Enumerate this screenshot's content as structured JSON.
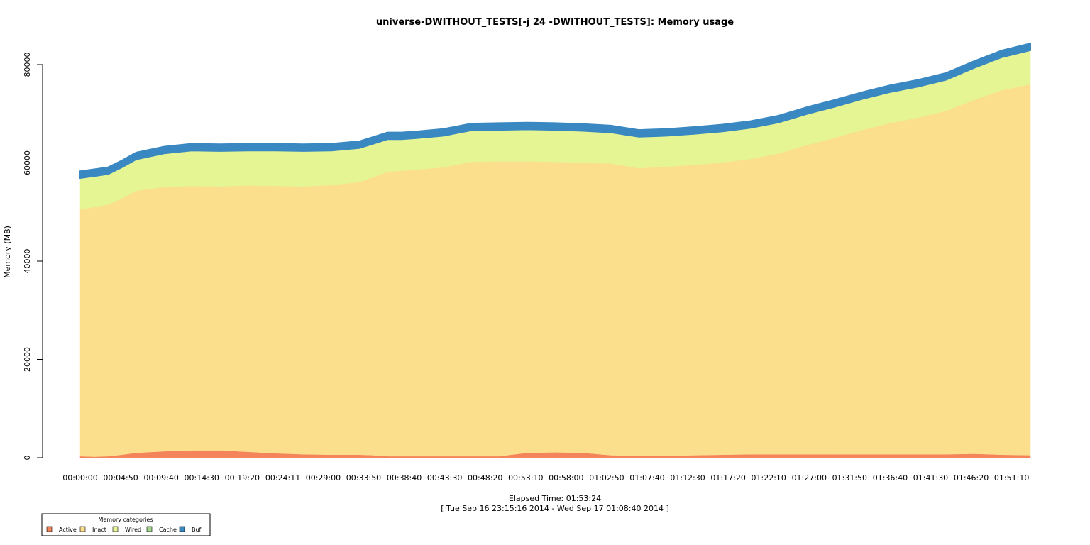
{
  "chart_data": {
    "type": "area",
    "title": "universe-DWITHOUT_TESTS[-j 24  -DWITHOUT_TESTS]: Memory usage",
    "ylabel": "Memory (MB)",
    "xlabel": "Elapsed Time: 01:53:24",
    "subtitle": "[ Tue Sep 16 23:15:16 2014 - Wed Sep 17 01:08:40 2014 ]",
    "ylim": [
      0,
      80000
    ],
    "yticks": [
      0,
      20000,
      40000,
      60000,
      80000
    ],
    "xlim": [
      0,
      6804
    ],
    "xtick_labels": [
      "00:00:00",
      "00:04:50",
      "00:09:40",
      "00:14:30",
      "00:19:20",
      "00:24:11",
      "00:29:00",
      "00:33:50",
      "00:38:40",
      "00:43:30",
      "00:48:20",
      "00:53:10",
      "00:58:00",
      "01:02:50",
      "01:07:40",
      "01:12:30",
      "01:17:20",
      "01:22:10",
      "01:27:00",
      "01:31:50",
      "01:36:40",
      "01:41:30",
      "01:46:20",
      "01:51:10"
    ],
    "xtick_values": [
      0,
      290,
      580,
      870,
      1160,
      1451,
      1740,
      2030,
      2320,
      2610,
      2900,
      3190,
      3480,
      3770,
      4060,
      4350,
      4640,
      4930,
      5220,
      5510,
      5800,
      6090,
      6380,
      6670
    ],
    "legend_title": "Memory categories",
    "legend_position": "bottom-left",
    "x": [
      0,
      100,
      200,
      300,
      400,
      600,
      800,
      1000,
      1200,
      1400,
      1600,
      1800,
      2000,
      2100,
      2200,
      2300,
      2400,
      2600,
      2800,
      3000,
      3200,
      3400,
      3600,
      3800,
      4000,
      4100,
      4200,
      4400,
      4600,
      4800,
      5000,
      5200,
      5400,
      5600,
      5800,
      6000,
      6200,
      6400,
      6600,
      6804
    ],
    "series": [
      {
        "name": "Active",
        "color": "#f4845a",
        "values": [
          300,
          200,
          300,
          600,
          1000,
          1300,
          1500,
          1500,
          1200,
          900,
          700,
          600,
          600,
          500,
          300,
          300,
          300,
          300,
          300,
          300,
          1000,
          1100,
          1000,
          500,
          400,
          400,
          400,
          500,
          600,
          700,
          700,
          700,
          700,
          700,
          700,
          700,
          700,
          800,
          600,
          500
        ]
      },
      {
        "name": "Inact",
        "color": "#fcdf8c",
        "values": [
          50200,
          50800,
          51200,
          52200,
          53300,
          53800,
          53800,
          53700,
          54200,
          54400,
          54500,
          54900,
          55500,
          56600,
          57900,
          58100,
          58300,
          58800,
          59900,
          60000,
          59300,
          59100,
          59000,
          59400,
          58500,
          58700,
          58800,
          59100,
          59500,
          60100,
          61200,
          62900,
          64400,
          66000,
          67400,
          68500,
          69900,
          72000,
          74200,
          75500
        ]
      },
      {
        "name": "Wired",
        "color": "#e5f594",
        "values": [
          6400,
          6300,
          6200,
          6300,
          6400,
          6800,
          7200,
          7200,
          7100,
          7200,
          7200,
          7000,
          6900,
          6800,
          6600,
          6400,
          6400,
          6400,
          6400,
          6400,
          6500,
          6500,
          6500,
          6300,
          6400,
          6300,
          6300,
          6300,
          6300,
          6300,
          6300,
          6300,
          6300,
          6300,
          6300,
          6300,
          6300,
          6500,
          6700,
          6900
        ]
      },
      {
        "name": "Cache",
        "color": "#a5d88f",
        "values": [
          0,
          0,
          0,
          0,
          0,
          0,
          0,
          0,
          0,
          0,
          0,
          0,
          0,
          0,
          0,
          0,
          0,
          0,
          0,
          0,
          0,
          0,
          0,
          0,
          0,
          0,
          0,
          0,
          0,
          0,
          0,
          0,
          0,
          0,
          0,
          0,
          0,
          0,
          0,
          0
        ]
      },
      {
        "name": "Buf",
        "color": "#3a88c1",
        "values": [
          1400,
          1400,
          1400,
          1400,
          1400,
          1400,
          1400,
          1400,
          1400,
          1400,
          1400,
          1400,
          1400,
          1400,
          1400,
          1400,
          1400,
          1400,
          1400,
          1400,
          1400,
          1400,
          1400,
          1400,
          1400,
          1400,
          1400,
          1400,
          1400,
          1400,
          1400,
          1400,
          1400,
          1400,
          1400,
          1400,
          1400,
          1400,
          1400,
          1400
        ]
      }
    ]
  }
}
